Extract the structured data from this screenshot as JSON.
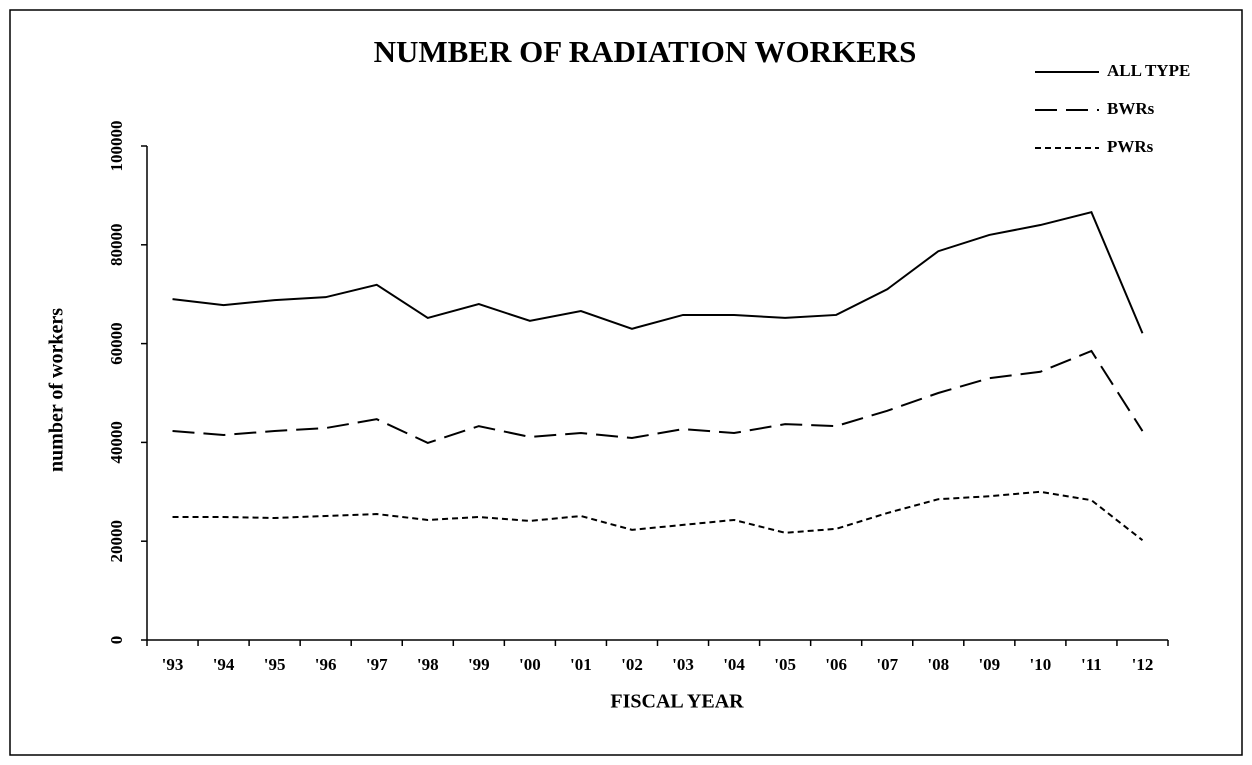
{
  "chart_data": {
    "type": "line",
    "title": "NUMBER OF RADIATION  WORKERS",
    "x_label": "FISCAL YEAR",
    "y_label": "number of workers",
    "categories": [
      "'93",
      "'94",
      "'95",
      "'96",
      "'97",
      "'98",
      "'99",
      "'00",
      "'01",
      "'02",
      "'03",
      "'04",
      "'05",
      "'06",
      "'07",
      "'08",
      "'09",
      "'10",
      "'11",
      "'12"
    ],
    "series": [
      {
        "name": "ALL TYPE",
        "color": "#000000",
        "linestyle": "solid",
        "values": [
          69000,
          67800,
          68800,
          69400,
          71900,
          65200,
          68000,
          64600,
          66600,
          63000,
          65800,
          65800,
          65200,
          65800,
          71000,
          78700,
          82000,
          84000,
          86600,
          62100
        ]
      },
      {
        "name": "BWRs",
        "color": "#000000",
        "linestyle": "dashed",
        "values": [
          42300,
          41500,
          42300,
          42900,
          44700,
          39900,
          43300,
          41100,
          41900,
          40900,
          42700,
          41900,
          43700,
          43300,
          46400,
          50000,
          53000,
          54300,
          58500,
          42300
        ]
      },
      {
        "name": "PWRs",
        "color": "#000000",
        "linestyle": "dotted",
        "values": [
          24900,
          24900,
          24700,
          25100,
          25500,
          24300,
          24900,
          24100,
          25100,
          22300,
          23300,
          24300,
          21700,
          22500,
          25700,
          28500,
          29100,
          30000,
          28300,
          20200
        ]
      }
    ],
    "ylim": [
      0,
      100000
    ],
    "yticks": [
      0,
      20000,
      40000,
      60000,
      80000,
      100000
    ],
    "grid": false,
    "legend": "upper right"
  }
}
